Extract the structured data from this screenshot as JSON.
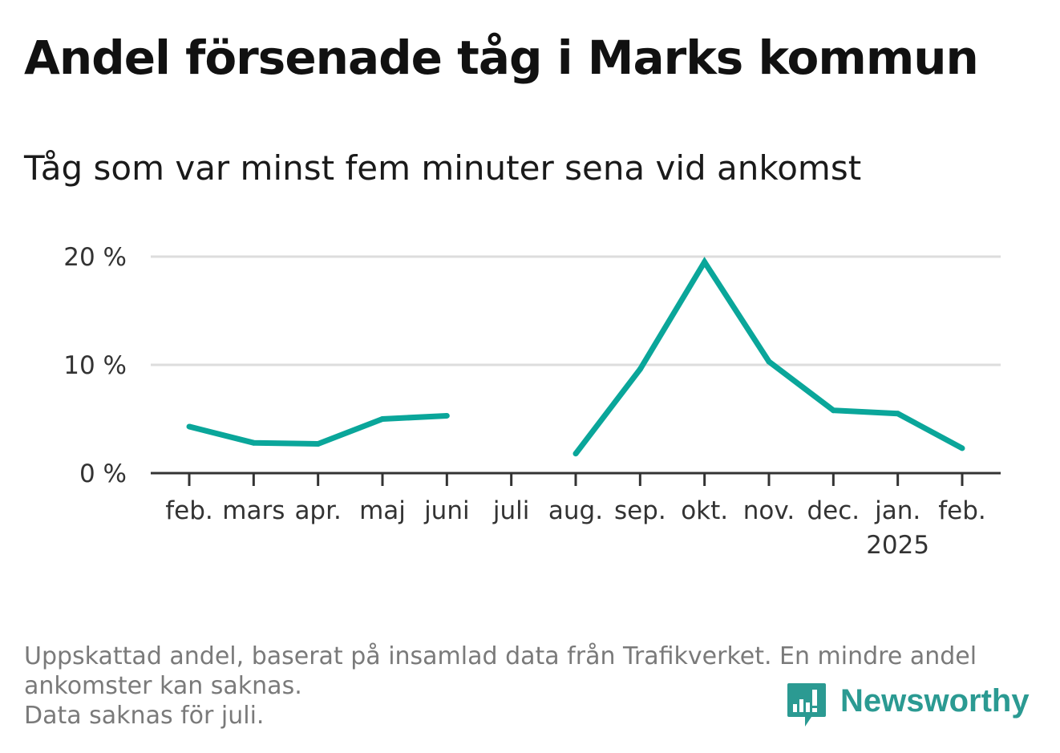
{
  "header": {
    "title": "Andel försenade tåg i Marks kommun",
    "subtitle": "Tåg som var minst fem minuter sena vid ankomst"
  },
  "chart_data": {
    "type": "line",
    "title": "Andel försenade tåg i Marks kommun",
    "subtitle": "Tåg som var minst fem minuter sena vid ankomst",
    "categories": [
      "feb.",
      "mars",
      "apr.",
      "maj",
      "juni",
      "juli",
      "aug.",
      "sep.",
      "okt.",
      "nov.",
      "dec.",
      "jan.",
      "feb."
    ],
    "category_sublabels": [
      "",
      "",
      "",
      "",
      "",
      "",
      "",
      "",
      "",
      "",
      "",
      "2025",
      ""
    ],
    "series": [
      {
        "values": [
          4.3,
          2.8,
          2.7,
          5.0,
          5.3,
          null,
          1.8,
          9.6,
          19.5,
          10.3,
          5.8,
          5.5,
          2.3
        ]
      }
    ],
    "ylim": [
      0,
      20
    ],
    "yticks": [
      0,
      10,
      20
    ],
    "ytick_labels": [
      "0 %",
      "10 %",
      "20 %"
    ],
    "xlabel": "",
    "ylabel": "",
    "grid": true,
    "line_color": "#0aa69a"
  },
  "footnote": {
    "line1": "Uppskattad andel, baserat på insamlad data från Trafikverket. En mindre andel",
    "line2": "ankomster kan saknas.",
    "line3": "Data saknas för juli."
  },
  "logo": {
    "text": "Newsworthy",
    "icon": "newsworthy-chart-bubble-icon",
    "color": "#2b9a92"
  }
}
